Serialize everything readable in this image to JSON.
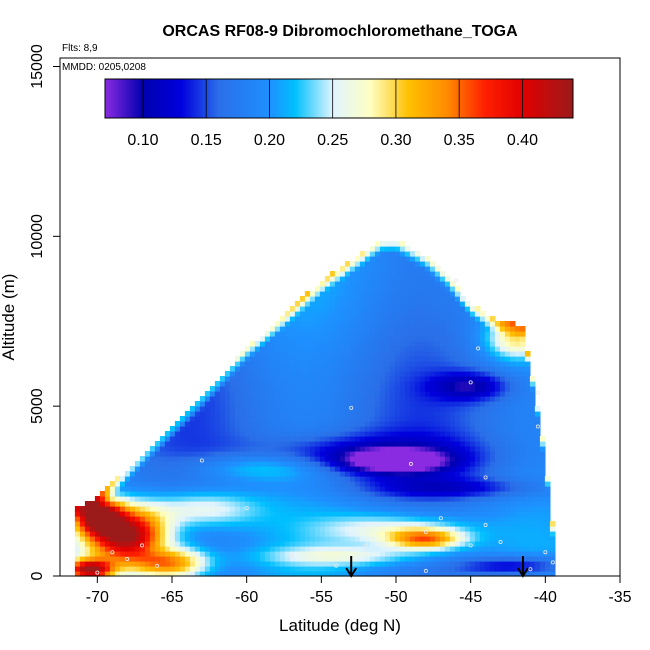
{
  "chart_data": {
    "type": "heatmap",
    "title": "ORCAS RF08-9 Dibromochloromethane_TOGA",
    "annotations": {
      "flights": "Flts: 8,9",
      "dates": "MMDD: 0205,0208"
    },
    "xlabel": "Latitude (deg N)",
    "ylabel": "Altitude (m)",
    "xlim": [
      -72.5,
      -35
    ],
    "ylim": [
      0,
      15250
    ],
    "x_ticks": [
      -70,
      -65,
      -60,
      -55,
      -50,
      -45,
      -40,
      -35
    ],
    "x_tick_labels": [
      "-70",
      "-65",
      "-60",
      "-55",
      "-50",
      "-45",
      "-40",
      "-35"
    ],
    "y_ticks": [
      0,
      5000,
      10000,
      15000
    ],
    "y_tick_labels": [
      "0",
      "5000",
      "10000",
      "15000"
    ],
    "colorbar": {
      "range": [
        0.07,
        0.44
      ],
      "ticks": [
        0.1,
        0.15,
        0.2,
        0.25,
        0.3,
        0.35,
        0.4
      ],
      "tick_labels": [
        "0.10",
        "0.15",
        "0.20",
        "0.25",
        "0.30",
        "0.35",
        "0.40"
      ],
      "stops": [
        {
          "v": 0.07,
          "c": "#8a2be2"
        },
        {
          "v": 0.1,
          "c": "#0000b0"
        },
        {
          "v": 0.13,
          "c": "#0000dd"
        },
        {
          "v": 0.16,
          "c": "#2a6fe8"
        },
        {
          "v": 0.2,
          "c": "#1e90ff"
        },
        {
          "v": 0.22,
          "c": "#00bfff"
        },
        {
          "v": 0.25,
          "c": "#e0f4ff"
        },
        {
          "v": 0.28,
          "c": "#ffffc0"
        },
        {
          "v": 0.31,
          "c": "#ffc000"
        },
        {
          "v": 0.34,
          "c": "#ff8c00"
        },
        {
          "v": 0.37,
          "c": "#ff2000"
        },
        {
          "v": 0.4,
          "c": "#e00000"
        },
        {
          "v": 0.44,
          "c": "#9b1b1b"
        }
      ]
    },
    "domain": {
      "upper_edge": [
        [
          -71.5,
          2000
        ],
        [
          -70,
          2300
        ],
        [
          -66,
          4000
        ],
        [
          -63,
          5300
        ],
        [
          -60,
          6700
        ],
        [
          -55,
          8700
        ],
        [
          -51,
          9900
        ],
        [
          -50,
          9900
        ],
        [
          -48,
          9400
        ],
        [
          -46.5,
          8800
        ],
        [
          -45,
          8000
        ],
        [
          -43,
          7500
        ],
        [
          -41.5,
          7400
        ],
        [
          -40.5,
          5000
        ],
        [
          -40,
          3500
        ],
        [
          -39.5,
          1500
        ],
        [
          -39.3,
          0
        ]
      ],
      "x_min": -71.5,
      "x_max": -39.3
    },
    "field_description": "Background ~0.18 (blue); low layer red band near -70 to -64 lat; blue bands 3000-4000 m",
    "field_features": [
      {
        "lat": -68,
        "alt": 1200,
        "value": 0.43,
        "slat": 2.6,
        "salt": 800
      },
      {
        "lat": -70,
        "alt": 1800,
        "value": 0.41,
        "slat": 1.5,
        "salt": 500
      },
      {
        "lat": -70.5,
        "alt": 200,
        "value": 0.4,
        "slat": 1.5,
        "salt": 300
      },
      {
        "lat": -65,
        "alt": 400,
        "value": 0.33,
        "slat": 2.5,
        "salt": 500
      },
      {
        "lat": -63,
        "alt": 2000,
        "value": 0.27,
        "slat": 4,
        "salt": 600
      },
      {
        "lat": -48,
        "alt": 1100,
        "value": 0.32,
        "slat": 2.5,
        "salt": 300
      },
      {
        "lat": -50,
        "alt": 1400,
        "value": 0.26,
        "slat": 5,
        "salt": 500
      },
      {
        "lat": -42,
        "alt": 7000,
        "value": 0.28,
        "slat": 2,
        "salt": 600
      },
      {
        "lat": -59,
        "alt": 3200,
        "value": 0.24,
        "slat": 5,
        "salt": 400
      },
      {
        "lat": -50,
        "alt": 3400,
        "value": 0.08,
        "slat": 3,
        "salt": 300
      },
      {
        "lat": -52,
        "alt": 3500,
        "value": 0.1,
        "slat": 7,
        "salt": 600
      },
      {
        "lat": -45,
        "alt": 5600,
        "value": 0.11,
        "slat": 2.5,
        "salt": 400
      },
      {
        "lat": -46,
        "alt": 2600,
        "value": 0.13,
        "slat": 6,
        "salt": 300
      },
      {
        "lat": -42,
        "alt": 300,
        "value": 0.1,
        "slat": 4,
        "salt": 300
      },
      {
        "lat": -53,
        "alt": 600,
        "value": 0.24,
        "slat": 6,
        "salt": 300
      },
      {
        "lat": -66,
        "alt": 800,
        "value": 0.15,
        "slat": 2,
        "salt": 300
      }
    ],
    "background_value": 0.18,
    "sample_points": [
      [
        -70,
        100
      ],
      [
        -69,
        700
      ],
      [
        -68,
        500
      ],
      [
        -67,
        900
      ],
      [
        -66,
        300
      ],
      [
        -63,
        3400
      ],
      [
        -60,
        2000
      ],
      [
        -57,
        600
      ],
      [
        -54,
        300
      ],
      [
        -53,
        4950
      ],
      [
        -49,
        3300
      ],
      [
        -48,
        150
      ],
      [
        -48,
        1300
      ],
      [
        -47,
        1700
      ],
      [
        -44,
        1500
      ],
      [
        -44,
        2900
      ],
      [
        -43,
        1000
      ],
      [
        -45,
        5700
      ],
      [
        -46,
        8700
      ],
      [
        -44.5,
        6700
      ],
      [
        -40.5,
        4400
      ],
      [
        -40.5,
        5400
      ],
      [
        -40,
        700
      ],
      [
        -39.5,
        400
      ],
      [
        -41,
        200
      ],
      [
        -45,
        900
      ],
      [
        -52,
        900
      ]
    ],
    "arrows_lat": [
      -53,
      -41.5
    ]
  }
}
